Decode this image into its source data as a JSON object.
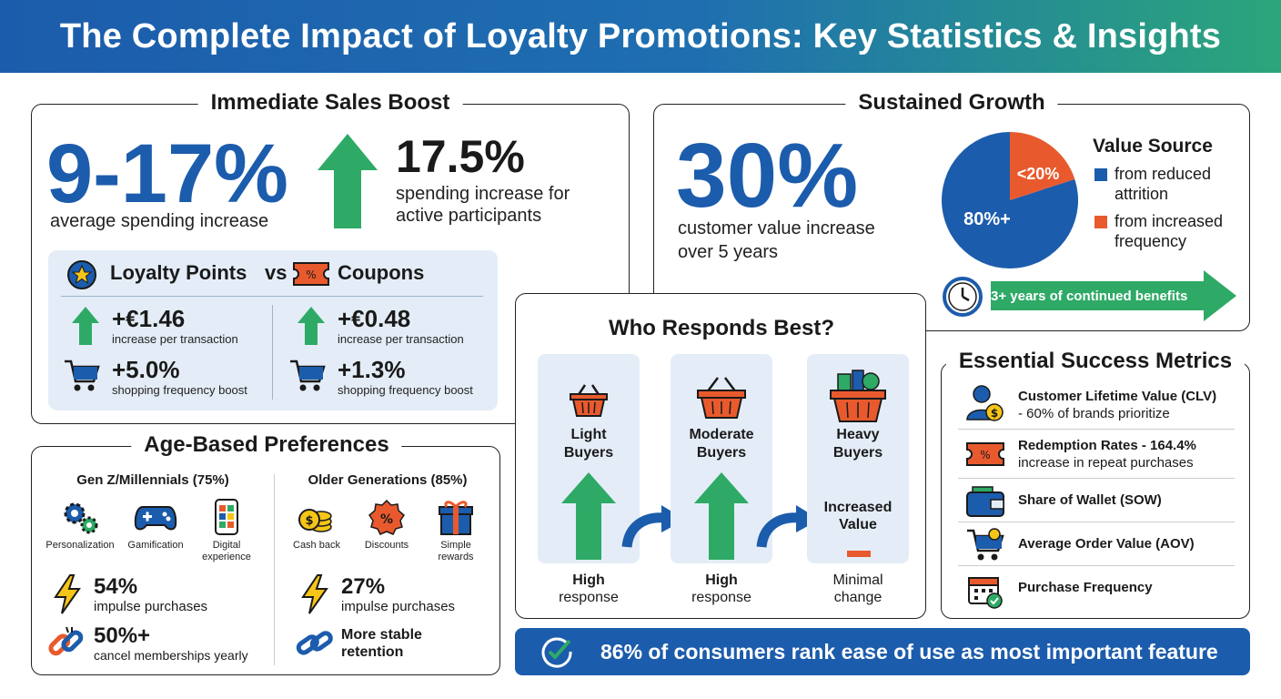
{
  "title": "The Complete Impact of Loyalty Promotions: Key Statistics & Insights",
  "immediate": {
    "title": "Immediate Sales Boost",
    "big_value": "9-17%",
    "big_label": "average spending increase",
    "side_value": "17.5%",
    "side_label_1": "spending increase for",
    "side_label_2": "active participants",
    "compare": {
      "left_title": "Loyalty Points",
      "vs": "vs",
      "right_title": "Coupons",
      "left_txn_value": "+€1.46",
      "left_txn_label": "increase per transaction",
      "left_freq_value": "+5.0%",
      "left_freq_label": "shopping frequency boost",
      "right_txn_value": "+€0.48",
      "right_txn_label": "increase per transaction",
      "right_freq_value": "+1.3%",
      "right_freq_label": "shopping frequency boost"
    }
  },
  "sustained": {
    "title": "Sustained Growth",
    "big_value": "30%",
    "label_1": "customer value increase",
    "label_2": "over 5 years",
    "pie_major_label": "80%+",
    "pie_minor_label": "<20%",
    "pie_major_fraction": 0.8,
    "pie_minor_fraction": 0.2,
    "legend_title": "Value Source",
    "legend_1a": "from reduced",
    "legend_1b": "attrition",
    "legend_2a": "from increased",
    "legend_2b": "frequency",
    "colors": {
      "major": "#1c5cac",
      "minor": "#e85a2e"
    },
    "banner": "3+ years of continued benefits"
  },
  "responders": {
    "title": "Who Responds Best?",
    "light_1": "Light",
    "light_2": "Buyers",
    "moderate_1": "Moderate",
    "moderate_2": "Buyers",
    "heavy_1": "Heavy",
    "heavy_2": "Buyers",
    "heavy_mid_1": "Increased",
    "heavy_mid_2": "Value",
    "light_resp_1": "High",
    "light_resp_2": "response",
    "moderate_resp_1": "High",
    "moderate_resp_2": "response",
    "heavy_resp_1": "Minimal",
    "heavy_resp_2": "change"
  },
  "age": {
    "title": "Age-Based Preferences",
    "gen_z_title": "Gen Z/Millennials (75%)",
    "older_title": "Older Generations (85%)",
    "gz_icon_1": "Personalization",
    "gz_icon_2": "Gamification",
    "gz_icon_3a": "Digital",
    "gz_icon_3b": "experience",
    "old_icon_1": "Cash back",
    "old_icon_2": "Discounts",
    "old_icon_3a": "Simple",
    "old_icon_3b": "rewards",
    "gz_impulse_value": "54%",
    "gz_impulse_label": "impulse purchases",
    "gz_cancel_value": "50%+",
    "gz_cancel_label": "cancel memberships yearly",
    "old_impulse_value": "27%",
    "old_impulse_label": "impulse purchases",
    "old_retention_1": "More stable",
    "old_retention_2": "retention"
  },
  "metrics": {
    "title": "Essential Success Metrics",
    "m1a": "Customer Lifetime Value (CLV)",
    "m1b": "- 60% of brands prioritize",
    "m2a": "Redemption Rates - 164.4%",
    "m2b": "increase in repeat purchases",
    "m3": "Share of Wallet (SOW)",
    "m4": "Average Order Value (AOV)",
    "m5": "Purchase Frequency"
  },
  "footer": "86% of consumers rank ease of use as most important feature"
}
